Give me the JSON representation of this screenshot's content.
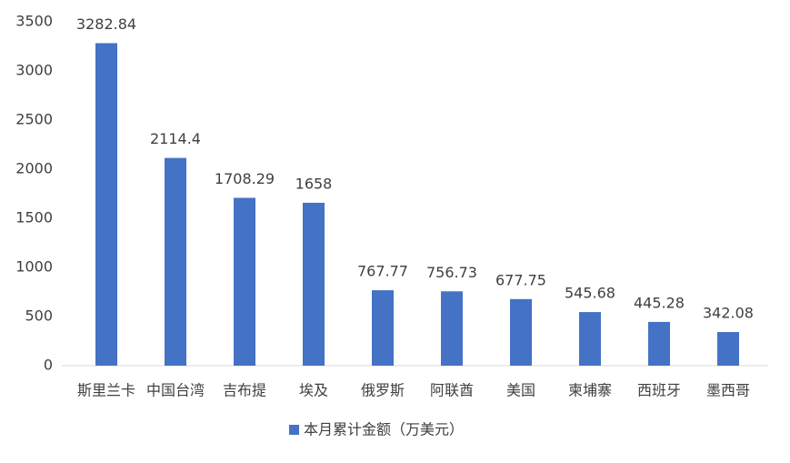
{
  "chart_data": {
    "type": "bar",
    "categories": [
      "斯里兰卡",
      "中国台湾",
      "吉布提",
      "埃及",
      "俄罗斯",
      "阿联酋",
      "美国",
      "柬埔寨",
      "西班牙",
      "墨西哥"
    ],
    "series": [
      {
        "name": "本月累计金额（万美元）",
        "color": "#4472c4",
        "values": [
          3282.84,
          2114.4,
          1708.29,
          1658,
          767.77,
          756.73,
          677.75,
          545.68,
          445.28,
          342.08
        ]
      }
    ],
    "ylim": [
      0,
      3500
    ],
    "yticks": [
      0,
      500,
      1000,
      1500,
      2000,
      2500,
      3000,
      3500
    ],
    "grid": false,
    "legend": "bottom"
  }
}
